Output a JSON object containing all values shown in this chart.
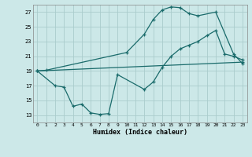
{
  "xlabel": "Humidex (Indice chaleur)",
  "bg_color": "#cce8e8",
  "grid_color": "#aacccc",
  "line_color": "#1a6b6b",
  "xlim": [
    -0.5,
    23.5
  ],
  "ylim": [
    12,
    28
  ],
  "xticks": [
    0,
    1,
    2,
    3,
    4,
    5,
    6,
    7,
    8,
    9,
    10,
    11,
    12,
    13,
    14,
    15,
    16,
    17,
    18,
    19,
    20,
    21,
    22,
    23
  ],
  "yticks": [
    13,
    15,
    17,
    19,
    21,
    23,
    25,
    27
  ],
  "line1_x": [
    0,
    1,
    10,
    12,
    13,
    14,
    15,
    16,
    17,
    18,
    20,
    22,
    23
  ],
  "line1_y": [
    19.0,
    19.1,
    21.5,
    24.0,
    26.0,
    27.3,
    27.7,
    27.6,
    26.8,
    26.5,
    27.0,
    21.3,
    20.0
  ],
  "line2_x": [
    0,
    2,
    3,
    4,
    5,
    6,
    7,
    8,
    9,
    12,
    13,
    14,
    15,
    16,
    17,
    18,
    19,
    20,
    21,
    22,
    23
  ],
  "line2_y": [
    19.0,
    17.0,
    16.8,
    14.2,
    14.5,
    13.3,
    13.1,
    13.2,
    18.5,
    16.5,
    17.5,
    19.5,
    21.0,
    22.0,
    22.5,
    23.0,
    23.8,
    24.5,
    21.3,
    21.0,
    20.5
  ],
  "line3_x": [
    0,
    23
  ],
  "line3_y": [
    19.0,
    20.2
  ]
}
